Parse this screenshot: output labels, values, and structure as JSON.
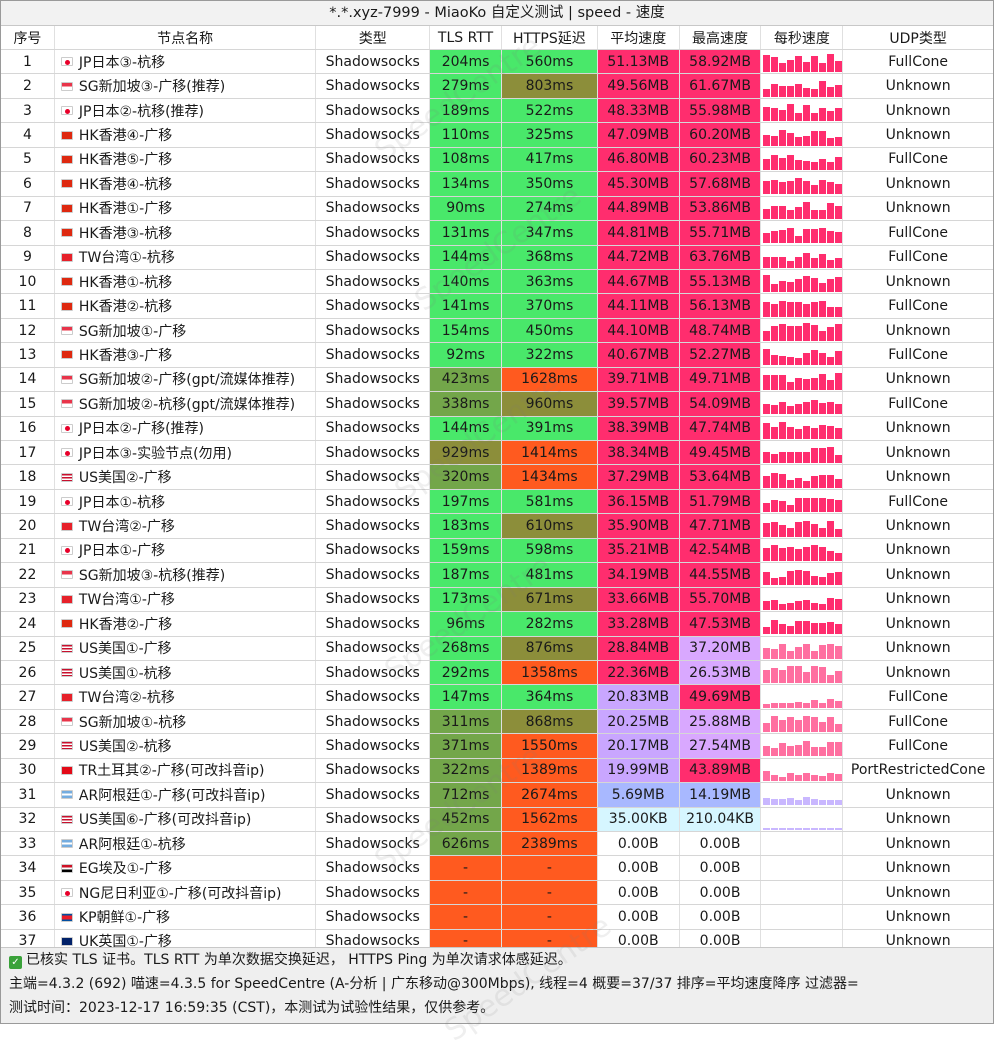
{
  "title": "*.*.xyz-7999 - MiaoKo 自定义测试 | speed - 速度",
  "headers": {
    "idx": "序号",
    "name": "节点名称",
    "type": "类型",
    "tls": "TLS RTT",
    "https": "HTTPS延迟",
    "avg": "平均速度",
    "max": "最高速度",
    "spark": "每秒速度",
    "udp": "UDP类型"
  },
  "rows": [
    {
      "idx": "1",
      "flag": "jp",
      "name": "JP日本③-杭移",
      "type": "Shadowsocks",
      "tls": "204ms",
      "https": "560ms",
      "avg": "51.13MB",
      "max": "58.92MB",
      "udp": "FullCone"
    },
    {
      "idx": "2",
      "flag": "sg",
      "name": "SG新加坡③-广移(推荐)",
      "type": "Shadowsocks",
      "tls": "279ms",
      "https": "803ms",
      "avg": "49.56MB",
      "max": "61.67MB",
      "udp": "Unknown"
    },
    {
      "idx": "3",
      "flag": "jp",
      "name": "JP日本②-杭移(推荐)",
      "type": "Shadowsocks",
      "tls": "189ms",
      "https": "522ms",
      "avg": "48.33MB",
      "max": "55.98MB",
      "udp": "Unknown"
    },
    {
      "idx": "4",
      "flag": "hk",
      "name": "HK香港④-广移",
      "type": "Shadowsocks",
      "tls": "110ms",
      "https": "325ms",
      "avg": "47.09MB",
      "max": "60.20MB",
      "udp": "Unknown"
    },
    {
      "idx": "5",
      "flag": "hk",
      "name": "HK香港⑤-广移",
      "type": "Shadowsocks",
      "tls": "108ms",
      "https": "417ms",
      "avg": "46.80MB",
      "max": "60.23MB",
      "udp": "FullCone"
    },
    {
      "idx": "6",
      "flag": "hk",
      "name": "HK香港④-杭移",
      "type": "Shadowsocks",
      "tls": "134ms",
      "https": "350ms",
      "avg": "45.30MB",
      "max": "57.68MB",
      "udp": "Unknown"
    },
    {
      "idx": "7",
      "flag": "hk",
      "name": "HK香港①-广移",
      "type": "Shadowsocks",
      "tls": "90ms",
      "https": "274ms",
      "avg": "44.89MB",
      "max": "53.86MB",
      "udp": "Unknown"
    },
    {
      "idx": "8",
      "flag": "hk",
      "name": "HK香港③-杭移",
      "type": "Shadowsocks",
      "tls": "131ms",
      "https": "347ms",
      "avg": "44.81MB",
      "max": "55.71MB",
      "udp": "FullCone"
    },
    {
      "idx": "9",
      "flag": "tw",
      "name": "TW台湾①-杭移",
      "type": "Shadowsocks",
      "tls": "144ms",
      "https": "368ms",
      "avg": "44.72MB",
      "max": "63.76MB",
      "udp": "FullCone"
    },
    {
      "idx": "10",
      "flag": "hk",
      "name": "HK香港①-杭移",
      "type": "Shadowsocks",
      "tls": "140ms",
      "https": "363ms",
      "avg": "44.67MB",
      "max": "55.13MB",
      "udp": "Unknown"
    },
    {
      "idx": "11",
      "flag": "hk",
      "name": "HK香港②-杭移",
      "type": "Shadowsocks",
      "tls": "141ms",
      "https": "370ms",
      "avg": "44.11MB",
      "max": "56.13MB",
      "udp": "FullCone"
    },
    {
      "idx": "12",
      "flag": "sg",
      "name": "SG新加坡①-广移",
      "type": "Shadowsocks",
      "tls": "154ms",
      "https": "450ms",
      "avg": "44.10MB",
      "max": "48.74MB",
      "udp": "Unknown"
    },
    {
      "idx": "13",
      "flag": "hk",
      "name": "HK香港③-广移",
      "type": "Shadowsocks",
      "tls": "92ms",
      "https": "322ms",
      "avg": "40.67MB",
      "max": "52.27MB",
      "udp": "FullCone"
    },
    {
      "idx": "14",
      "flag": "sg",
      "name": "SG新加坡②-广移(gpt/流媒体推荐)",
      "type": "Shadowsocks",
      "tls": "423ms",
      "https": "1628ms",
      "avg": "39.71MB",
      "max": "49.71MB",
      "udp": "Unknown"
    },
    {
      "idx": "15",
      "flag": "sg",
      "name": "SG新加坡②-杭移(gpt/流媒体推荐)",
      "type": "Shadowsocks",
      "tls": "338ms",
      "https": "960ms",
      "avg": "39.57MB",
      "max": "54.09MB",
      "udp": "FullCone"
    },
    {
      "idx": "16",
      "flag": "jp",
      "name": "JP日本②-广移(推荐)",
      "type": "Shadowsocks",
      "tls": "144ms",
      "https": "391ms",
      "avg": "38.39MB",
      "max": "47.74MB",
      "udp": "Unknown"
    },
    {
      "idx": "17",
      "flag": "jp",
      "name": "JP日本③-实验节点(勿用)",
      "type": "Shadowsocks",
      "tls": "929ms",
      "https": "1414ms",
      "avg": "38.34MB",
      "max": "49.45MB",
      "udp": "Unknown"
    },
    {
      "idx": "18",
      "flag": "us",
      "name": "US美国②-广移",
      "type": "Shadowsocks",
      "tls": "320ms",
      "https": "1434ms",
      "avg": "37.29MB",
      "max": "53.64MB",
      "udp": "Unknown"
    },
    {
      "idx": "19",
      "flag": "jp",
      "name": "JP日本①-杭移",
      "type": "Shadowsocks",
      "tls": "197ms",
      "https": "581ms",
      "avg": "36.15MB",
      "max": "51.79MB",
      "udp": "FullCone"
    },
    {
      "idx": "20",
      "flag": "tw",
      "name": "TW台湾②-广移",
      "type": "Shadowsocks",
      "tls": "183ms",
      "https": "610ms",
      "avg": "35.90MB",
      "max": "47.71MB",
      "udp": "Unknown"
    },
    {
      "idx": "21",
      "flag": "jp",
      "name": "JP日本①-广移",
      "type": "Shadowsocks",
      "tls": "159ms",
      "https": "598ms",
      "avg": "35.21MB",
      "max": "42.54MB",
      "udp": "Unknown"
    },
    {
      "idx": "22",
      "flag": "sg",
      "name": "SG新加坡③-杭移(推荐)",
      "type": "Shadowsocks",
      "tls": "187ms",
      "https": "481ms",
      "avg": "34.19MB",
      "max": "44.55MB",
      "udp": "Unknown"
    },
    {
      "idx": "23",
      "flag": "tw",
      "name": "TW台湾①-广移",
      "type": "Shadowsocks",
      "tls": "173ms",
      "https": "671ms",
      "avg": "33.66MB",
      "max": "55.70MB",
      "udp": "Unknown"
    },
    {
      "idx": "24",
      "flag": "hk",
      "name": "HK香港②-广移",
      "type": "Shadowsocks",
      "tls": "96ms",
      "https": "282ms",
      "avg": "33.28MB",
      "max": "47.53MB",
      "udp": "Unknown"
    },
    {
      "idx": "25",
      "flag": "us",
      "name": "US美国①-广移",
      "type": "Shadowsocks",
      "tls": "268ms",
      "https": "876ms",
      "avg": "28.84MB",
      "max": "37.20MB",
      "udp": "Unknown"
    },
    {
      "idx": "26",
      "flag": "us",
      "name": "US美国①-杭移",
      "type": "Shadowsocks",
      "tls": "292ms",
      "https": "1358ms",
      "avg": "22.36MB",
      "max": "26.53MB",
      "udp": "Unknown"
    },
    {
      "idx": "27",
      "flag": "tw",
      "name": "TW台湾②-杭移",
      "type": "Shadowsocks",
      "tls": "147ms",
      "https": "364ms",
      "avg": "20.83MB",
      "max": "49.69MB",
      "udp": "FullCone"
    },
    {
      "idx": "28",
      "flag": "sg",
      "name": "SG新加坡①-杭移",
      "type": "Shadowsocks",
      "tls": "311ms",
      "https": "868ms",
      "avg": "20.25MB",
      "max": "25.88MB",
      "udp": "FullCone"
    },
    {
      "idx": "29",
      "flag": "us",
      "name": "US美国②-杭移",
      "type": "Shadowsocks",
      "tls": "371ms",
      "https": "1550ms",
      "avg": "20.17MB",
      "max": "27.54MB",
      "udp": "FullCone"
    },
    {
      "idx": "30",
      "flag": "tr",
      "name": "TR土耳其②-广移(可改抖音ip)",
      "type": "Shadowsocks",
      "tls": "322ms",
      "https": "1389ms",
      "avg": "19.99MB",
      "max": "43.89MB",
      "udp": "PortRestrictedCone"
    },
    {
      "idx": "31",
      "flag": "ar",
      "name": "AR阿根廷①-广移(可改抖音ip)",
      "type": "Shadowsocks",
      "tls": "712ms",
      "https": "2674ms",
      "avg": "5.69MB",
      "max": "14.19MB",
      "udp": "Unknown"
    },
    {
      "idx": "32",
      "flag": "us",
      "name": "US美国⑥-广移(可改抖音ip)",
      "type": "Shadowsocks",
      "tls": "452ms",
      "https": "1562ms",
      "avg": "35.00KB",
      "max": "210.04KB",
      "udp": "Unknown"
    },
    {
      "idx": "33",
      "flag": "ar",
      "name": "AR阿根廷①-杭移",
      "type": "Shadowsocks",
      "tls": "626ms",
      "https": "2389ms",
      "avg": "0.00B",
      "max": "0.00B",
      "udp": "Unknown"
    },
    {
      "idx": "34",
      "flag": "eg",
      "name": "EG埃及①-广移",
      "type": "Shadowsocks",
      "tls": "-",
      "https": "-",
      "avg": "0.00B",
      "max": "0.00B",
      "udp": "Unknown"
    },
    {
      "idx": "35",
      "flag": "ng",
      "name": "NG尼日利亚①-广移(可改抖音ip)",
      "type": "Shadowsocks",
      "tls": "-",
      "https": "-",
      "avg": "0.00B",
      "max": "0.00B",
      "udp": "Unknown"
    },
    {
      "idx": "36",
      "flag": "kp",
      "name": "KP朝鲜①-广移",
      "type": "Shadowsocks",
      "tls": "-",
      "https": "-",
      "avg": "0.00B",
      "max": "0.00B",
      "udp": "Unknown"
    },
    {
      "idx": "37",
      "flag": "uk",
      "name": "UK英国①-广移",
      "type": "Shadowsocks",
      "tls": "-",
      "https": "-",
      "avg": "0.00B",
      "max": "0.00B",
      "udp": "Unknown"
    }
  ],
  "footer": {
    "line1": "已核实 TLS 证书。TLS RTT 为单次数据交换延迟， HTTPS Ping 为单次请求体感延迟。",
    "line2": "主端=4.3.2 (692) 喵速=4.3.5 for SpeedCentre (A-分析 | 广东移动@300Mbps), 线程=4 概要=37/37 排序=平均速度降序 过滤器=",
    "line3": "测试时间：2023-12-17 16:59:35 (CST)，本测试为试验性结果，仅供参考。"
  },
  "watermark": "SpeedCentre",
  "colors": {
    "green": "#49e86a",
    "olive": "#8c8e3a",
    "orange": "#ff5a1f",
    "magenta": "#ff2d6e",
    "lavender": "#c9a6ff",
    "lightblue": "#d6f6ff",
    "blue": "#a8b8ff"
  }
}
